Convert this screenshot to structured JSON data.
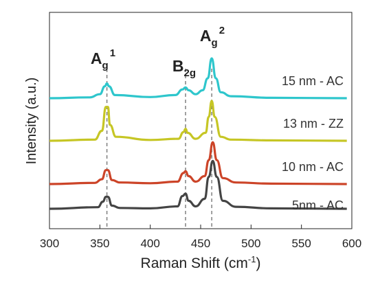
{
  "chart_data": {
    "type": "line",
    "xlabel": "Raman Shift (cm",
    "xlabel_sup": "-1",
    "xlabel_end": ")",
    "ylabel": "Intensity (a.u.)",
    "xlim": [
      300,
      600
    ],
    "xticks": [
      300,
      350,
      400,
      450,
      500,
      550,
      600
    ],
    "y_ticks_shown": false,
    "peaks": [
      {
        "base": "A",
        "sub": "g",
        "sup": "1",
        "x": 357
      },
      {
        "base": "B",
        "sub": "2g",
        "sup": "",
        "x": 435
      },
      {
        "base": "A",
        "sub": "g",
        "sup": "2",
        "x": 461
      }
    ],
    "series": [
      {
        "name": "15 nm - AC",
        "color": "#2ec6cc",
        "baseline": 3.0,
        "points": [
          [
            300,
            0
          ],
          [
            340,
            0.02
          ],
          [
            350,
            0.1
          ],
          [
            355,
            0.3
          ],
          [
            357,
            0.37
          ],
          [
            359,
            0.3
          ],
          [
            365,
            0.08
          ],
          [
            400,
            0.03
          ],
          [
            425,
            0.08
          ],
          [
            432,
            0.22
          ],
          [
            435,
            0.27
          ],
          [
            438,
            0.2
          ],
          [
            445,
            0.1
          ],
          [
            452,
            0.2
          ],
          [
            457,
            0.5
          ],
          [
            461,
            1.0
          ],
          [
            465,
            0.5
          ],
          [
            470,
            0.15
          ],
          [
            480,
            0.05
          ],
          [
            520,
            0.01
          ],
          [
            595,
            0
          ]
        ]
      },
      {
        "name": "13 nm - ZZ",
        "color": "#c6c625",
        "baseline": 2.0,
        "points": [
          [
            300,
            0
          ],
          [
            345,
            0.03
          ],
          [
            352,
            0.25
          ],
          [
            356,
            0.85
          ],
          [
            358,
            0.85
          ],
          [
            360,
            0.4
          ],
          [
            366,
            0.1
          ],
          [
            400,
            0.02
          ],
          [
            428,
            0.05
          ],
          [
            433,
            0.22
          ],
          [
            435,
            0.3
          ],
          [
            437,
            0.2
          ],
          [
            445,
            0.05
          ],
          [
            455,
            0.2
          ],
          [
            458,
            0.6
          ],
          [
            461,
            1.0
          ],
          [
            464,
            0.6
          ],
          [
            470,
            0.1
          ],
          [
            480,
            0.03
          ],
          [
            520,
            0.01
          ],
          [
            595,
            0
          ]
        ]
      },
      {
        "name": "10 nm - AC",
        "color": "#cc4428",
        "baseline": 1.0,
        "points": [
          [
            300,
            0
          ],
          [
            345,
            0.03
          ],
          [
            352,
            0.12
          ],
          [
            356,
            0.35
          ],
          [
            358,
            0.35
          ],
          [
            362,
            0.1
          ],
          [
            370,
            0.04
          ],
          [
            400,
            0.02
          ],
          [
            427,
            0.06
          ],
          [
            433,
            0.28
          ],
          [
            435,
            0.32
          ],
          [
            438,
            0.2
          ],
          [
            445,
            0.06
          ],
          [
            454,
            0.2
          ],
          [
            458,
            0.6
          ],
          [
            462,
            1.05
          ],
          [
            466,
            0.6
          ],
          [
            472,
            0.15
          ],
          [
            485,
            0.04
          ],
          [
            520,
            0.01
          ],
          [
            595,
            0
          ]
        ]
      },
      {
        "name": "5nm - AC",
        "color": "#444444",
        "baseline": 0.0,
        "points": [
          [
            300,
            0
          ],
          [
            348,
            0.04
          ],
          [
            353,
            0.18
          ],
          [
            356,
            0.3
          ],
          [
            358,
            0.3
          ],
          [
            362,
            0.08
          ],
          [
            370,
            0.02
          ],
          [
            400,
            0.01
          ],
          [
            427,
            0.06
          ],
          [
            432,
            0.32
          ],
          [
            435,
            0.38
          ],
          [
            438,
            0.2
          ],
          [
            445,
            0.06
          ],
          [
            454,
            0.25
          ],
          [
            458,
            0.8
          ],
          [
            462,
            1.2
          ],
          [
            466,
            0.8
          ],
          [
            472,
            0.2
          ],
          [
            485,
            0.05
          ],
          [
            520,
            0.01
          ],
          [
            595,
            0
          ]
        ]
      }
    ]
  }
}
